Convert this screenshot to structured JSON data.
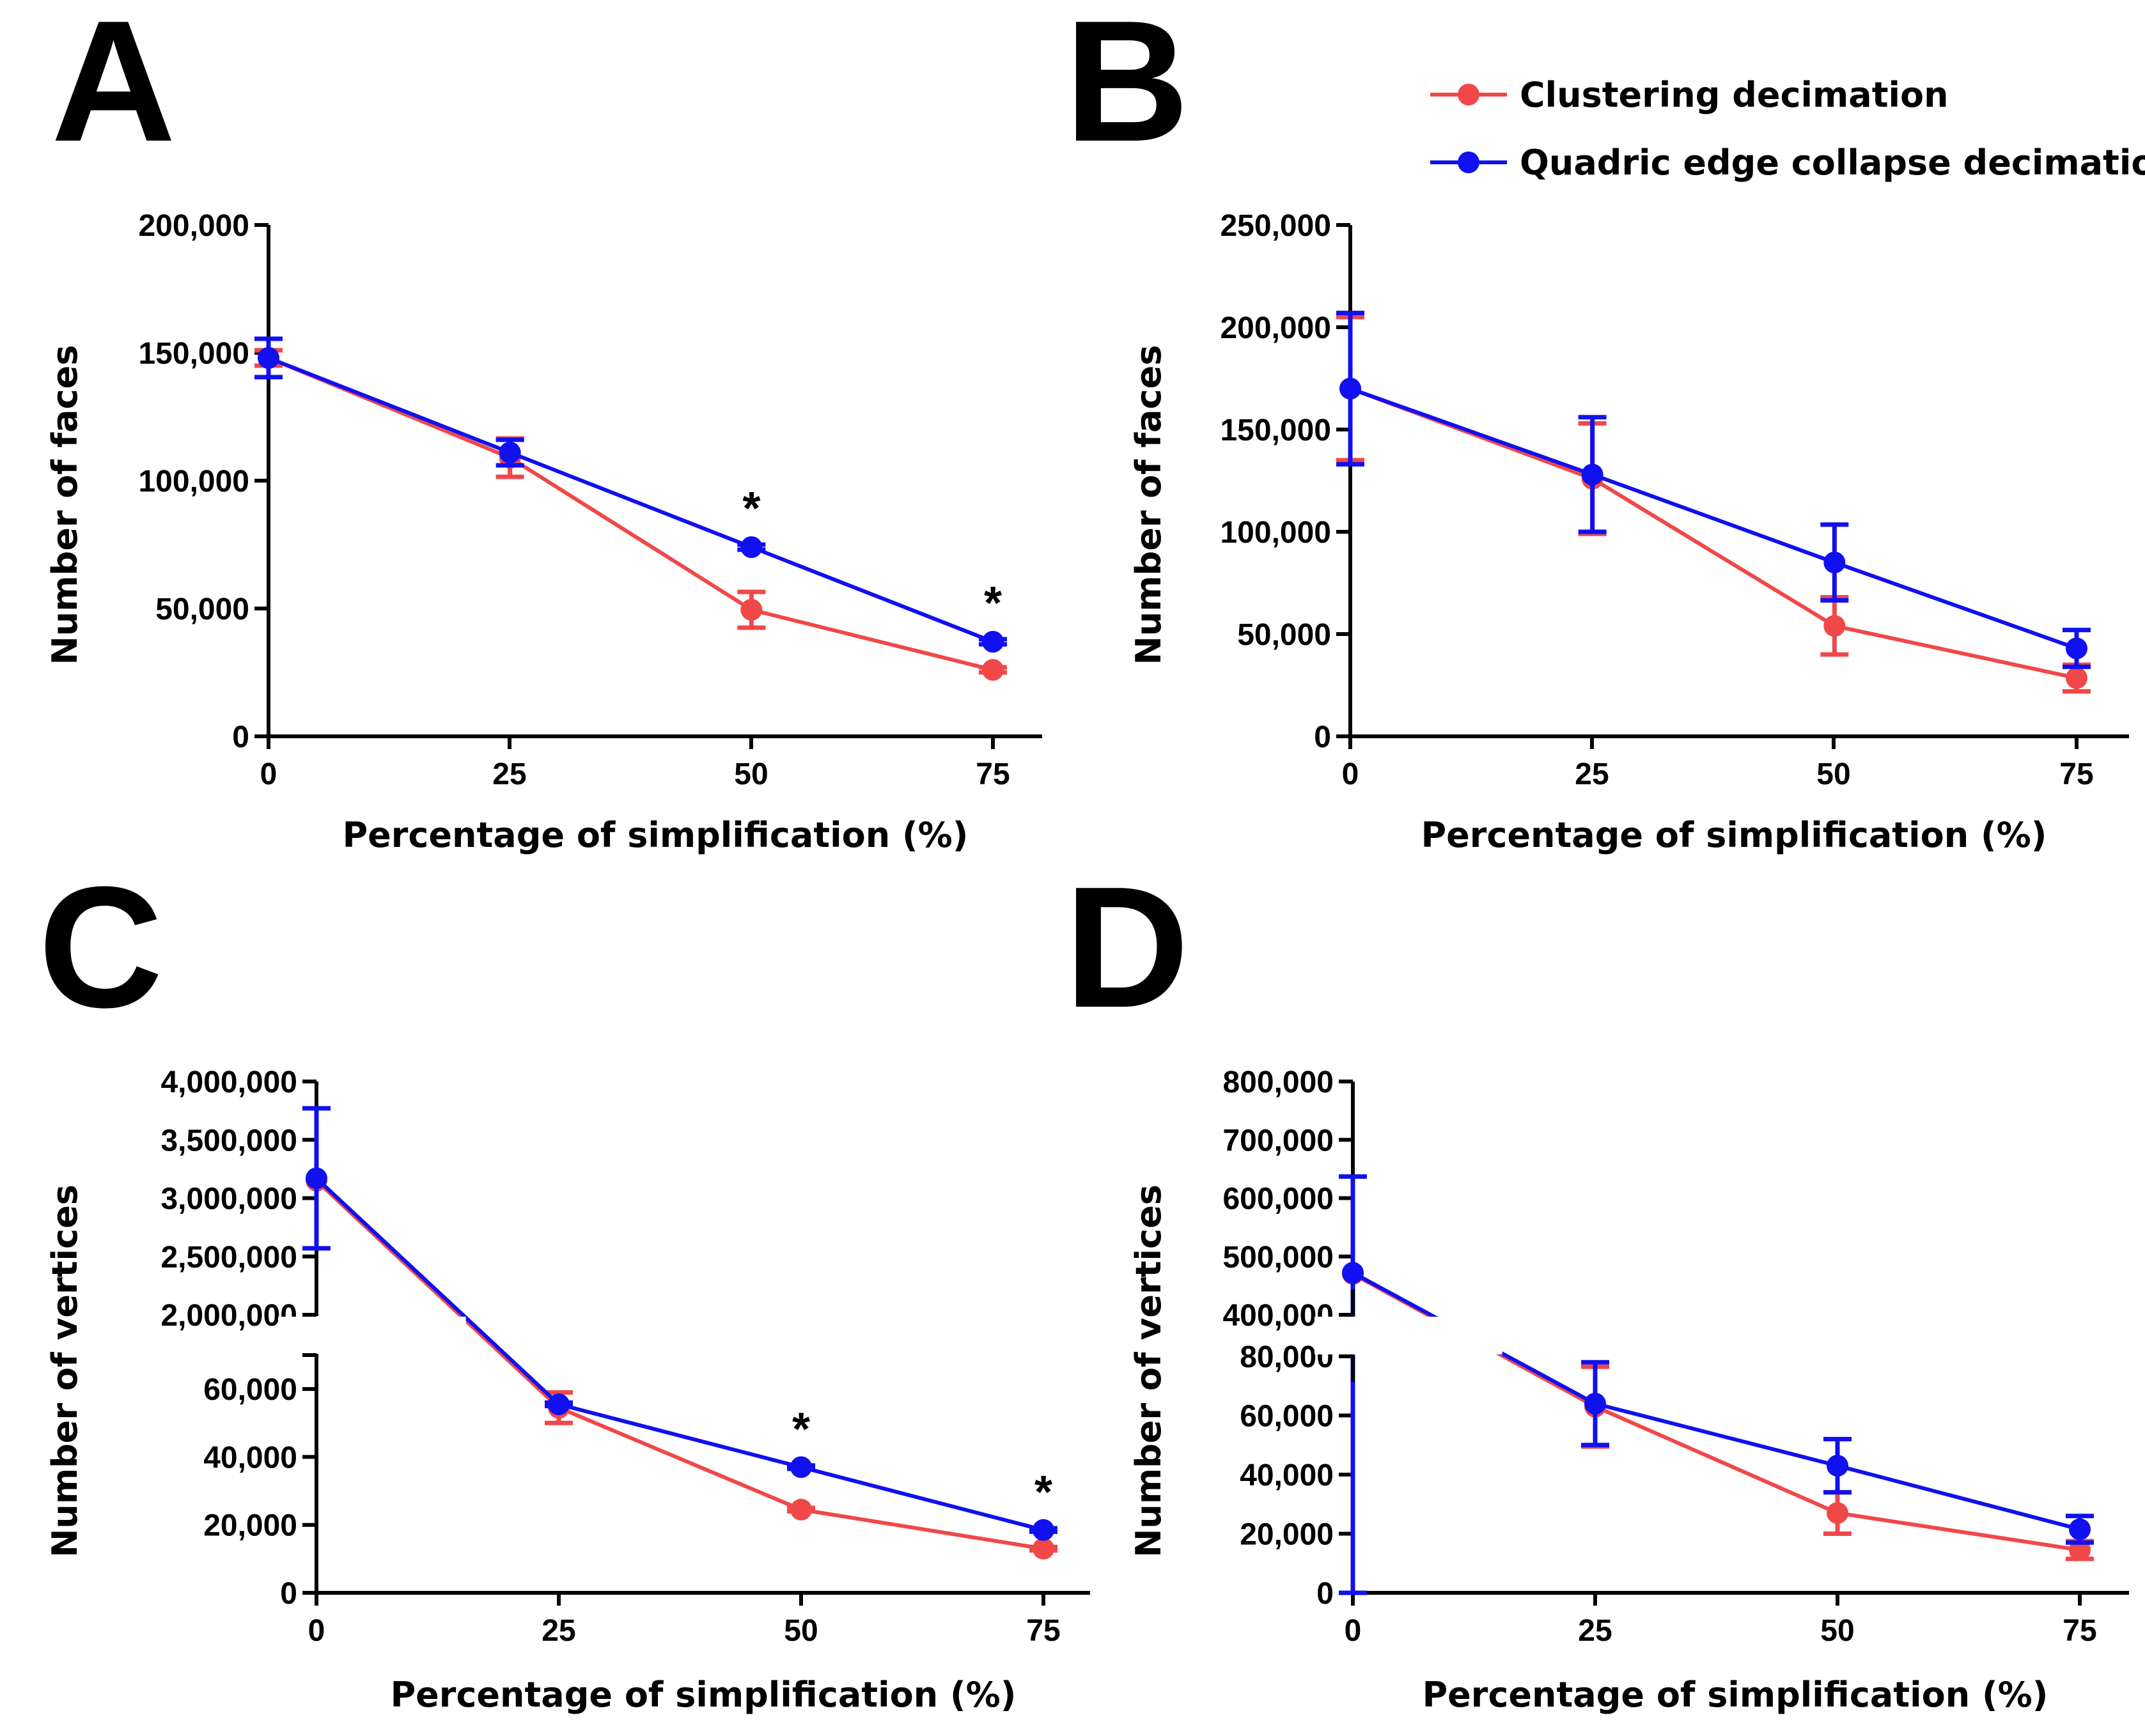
{
  "figure": {
    "legend": {
      "entries": [
        {
          "label": "Clustering decimation",
          "color": "#f04848"
        },
        {
          "label": "Quadric edge collapse decimation",
          "color": "#1010f0"
        }
      ]
    }
  },
  "chart_data": [
    {
      "panel": "A",
      "type": "line",
      "xlabel": "Percentage of simplification (%)",
      "ylabel": "Number of faces",
      "x": [
        0,
        25,
        50,
        75
      ],
      "xticks": [
        "0",
        "25",
        "50",
        "75"
      ],
      "ylim": [
        0,
        200000
      ],
      "yticks": [
        {
          "value": 0,
          "label": "0"
        },
        {
          "value": 50000,
          "label": "50,000"
        },
        {
          "value": 100000,
          "label": "100,000"
        },
        {
          "value": 150000,
          "label": "150,000"
        },
        {
          "value": 200000,
          "label": "200,000"
        }
      ],
      "series": [
        {
          "name": "Clustering decimation",
          "color": "#f04848",
          "values": [
            148000,
            109000,
            49500,
            26000
          ],
          "errors": [
            3000,
            7500,
            7000,
            1000
          ]
        },
        {
          "name": "Quadric edge collapse decimation",
          "color": "#1010f0",
          "values": [
            148000,
            111000,
            74000,
            37000
          ],
          "errors": [
            7500,
            5000,
            1000,
            1000
          ]
        }
      ],
      "significance": [
        {
          "x": 50,
          "mark": "*"
        },
        {
          "x": 75,
          "mark": "*"
        }
      ]
    },
    {
      "panel": "B",
      "type": "line",
      "xlabel": "Percentage of simplification (%)",
      "ylabel": "Number of faces",
      "x": [
        0,
        25,
        50,
        75
      ],
      "xticks": [
        "0",
        "25",
        "50",
        "75"
      ],
      "ylim": [
        0,
        250000
      ],
      "yticks": [
        {
          "value": 0,
          "label": "0"
        },
        {
          "value": 50000,
          "label": "50,000"
        },
        {
          "value": 100000,
          "label": "100,000"
        },
        {
          "value": 150000,
          "label": "150,000"
        },
        {
          "value": 200000,
          "label": "200,000"
        },
        {
          "value": 250000,
          "label": "250,000"
        }
      ],
      "series": [
        {
          "name": "Clustering decimation",
          "color": "#f04848",
          "values": [
            170000,
            126000,
            54000,
            28500
          ],
          "errors": [
            35000,
            27000,
            14000,
            6500
          ]
        },
        {
          "name": "Quadric edge collapse decimation",
          "color": "#1010f0",
          "values": [
            170000,
            128000,
            85000,
            43000
          ],
          "errors": [
            37000,
            28000,
            18500,
            9000
          ]
        }
      ],
      "significance": []
    },
    {
      "panel": "C",
      "type": "line",
      "xlabel": "Percentage of simplification (%)",
      "ylabel": "Number of vertices",
      "x": [
        0,
        25,
        50,
        75
      ],
      "xticks": [
        "0",
        "25",
        "50",
        "75"
      ],
      "broken_axis": {
        "lower": [
          0,
          70000
        ],
        "upper": [
          2000000,
          4000000
        ]
      },
      "yticks": [
        {
          "value": 0,
          "label": "0"
        },
        {
          "value": 20000,
          "label": "20,000"
        },
        {
          "value": 40000,
          "label": "40,000"
        },
        {
          "value": 60000,
          "label": "60,000"
        },
        {
          "value": 2000000,
          "label": "2,000,000"
        },
        {
          "value": 2500000,
          "label": "2,500,000"
        },
        {
          "value": 3000000,
          "label": "3,000,000"
        },
        {
          "value": 3500000,
          "label": "3,500,000"
        },
        {
          "value": 4000000,
          "label": "4,000,000"
        }
      ],
      "series": [
        {
          "name": "Clustering decimation",
          "color": "#f04848",
          "values": [
            3150000,
            54500,
            24500,
            13000
          ],
          "errors": [
            0,
            4500,
            500,
            500
          ]
        },
        {
          "name": "Quadric edge collapse decimation",
          "color": "#1010f0",
          "values": [
            3170000,
            55500,
            37000,
            18500
          ],
          "errors": [
            600000,
            500,
            500,
            500
          ]
        }
      ],
      "significance": [
        {
          "x": 50,
          "mark": "*"
        },
        {
          "x": 75,
          "mark": "*"
        }
      ]
    },
    {
      "panel": "D",
      "type": "line",
      "xlabel": "Percentage of simplification (%)",
      "ylabel": "Number of vertices",
      "x": [
        0,
        25,
        50,
        75
      ],
      "xticks": [
        "0",
        "25",
        "50",
        "75"
      ],
      "broken_axis": {
        "lower": [
          0,
          80000
        ],
        "upper": [
          400000,
          800000
        ]
      },
      "yticks": [
        {
          "value": 0,
          "label": "0"
        },
        {
          "value": 20000,
          "label": "20,000"
        },
        {
          "value": 40000,
          "label": "40,000"
        },
        {
          "value": 60000,
          "label": "60,000"
        },
        {
          "value": 80000,
          "label": "80,000"
        },
        {
          "value": 400000,
          "label": "400,000"
        },
        {
          "value": 500000,
          "label": "500,000"
        },
        {
          "value": 600000,
          "label": "600,000"
        },
        {
          "value": 700000,
          "label": "700,000"
        },
        {
          "value": 800000,
          "label": "800,000"
        }
      ],
      "series": [
        {
          "name": "Clustering decimation",
          "color": "#f04848",
          "values": [
            470000,
            63000,
            27000,
            14500
          ],
          "errors": [
            0,
            13500,
            7000,
            3000
          ]
        },
        {
          "name": "Quadric edge collapse decimation",
          "color": "#1010f0",
          "values": [
            472000,
            64000,
            43000,
            21500
          ],
          "errors": [
            165000,
            14000,
            9000,
            4500
          ]
        }
      ],
      "significance": []
    }
  ]
}
